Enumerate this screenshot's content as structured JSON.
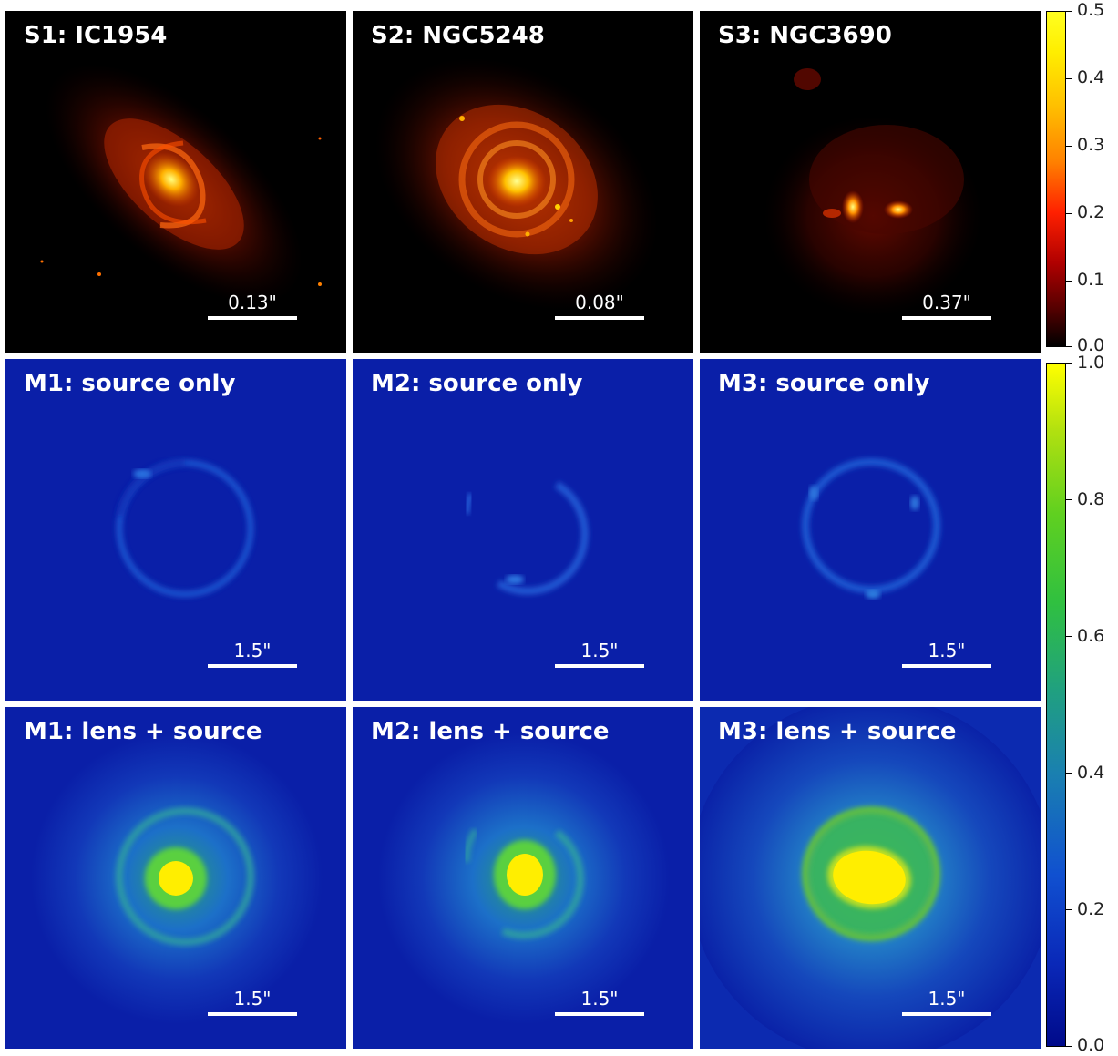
{
  "panels": [
    {
      "title": "S1: IC1954",
      "scale": "0.13\""
    },
    {
      "title": "S2: NGC5248",
      "scale": "0.08\""
    },
    {
      "title": "S3: NGC3690",
      "scale": "0.37\""
    },
    {
      "title": "M1: source only",
      "scale": "1.5\""
    },
    {
      "title": "M2: source only",
      "scale": "1.5\""
    },
    {
      "title": "M3: source only",
      "scale": "1.5\""
    },
    {
      "title": "M1: lens + source",
      "scale": "1.5\""
    },
    {
      "title": "M2: lens + source",
      "scale": "1.5\""
    },
    {
      "title": "M3: lens + source",
      "scale": "1.5\""
    }
  ],
  "colorbars": {
    "top": {
      "ticks": [
        "0.5",
        "0.4",
        "0.3",
        "0.2",
        "0.1",
        "0.0"
      ],
      "colormap": "hot"
    },
    "bottom": {
      "ticks": [
        "1.0",
        "0.8",
        "0.6",
        "0.4",
        "0.2",
        "0.0"
      ],
      "colormap": "jet-like"
    }
  },
  "colors": {
    "hot_background": "#000000",
    "model_background": "#0a1fa8",
    "lens_core": "#ffef00",
    "ring": "#2d6fd8"
  }
}
